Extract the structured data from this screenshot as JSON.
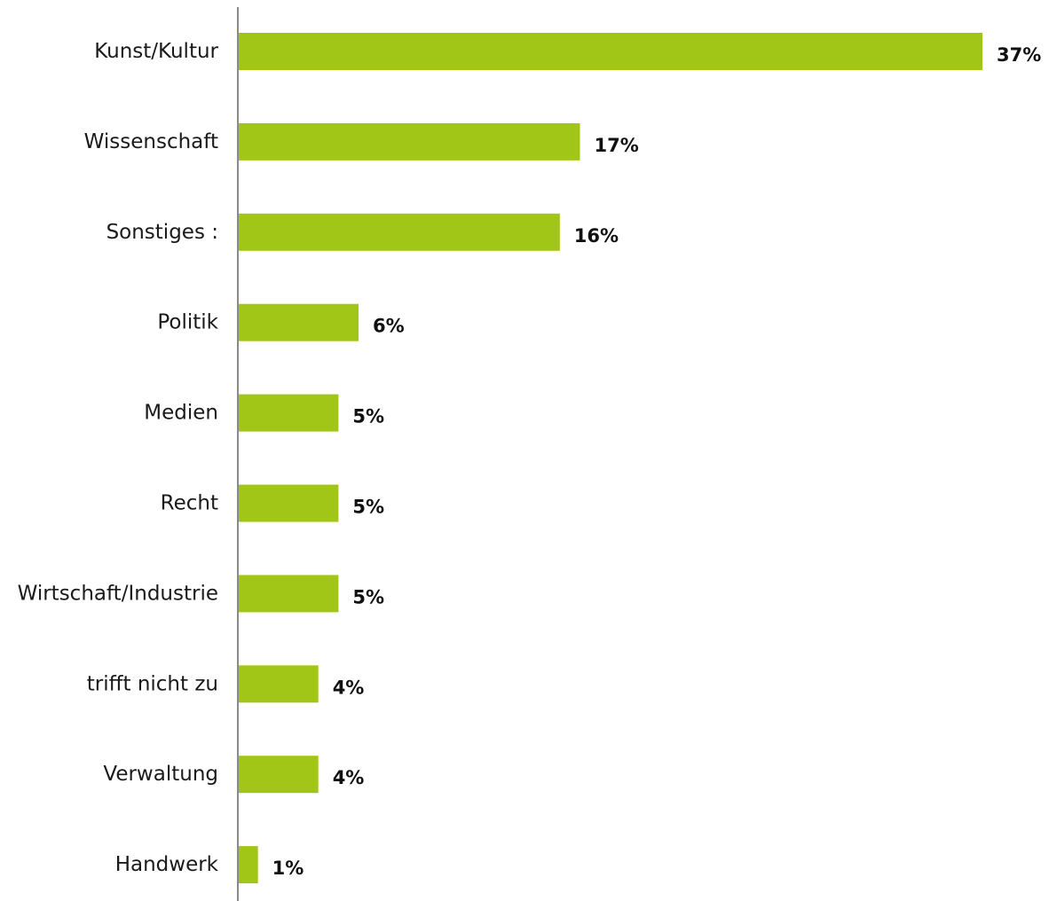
{
  "chart_data": {
    "type": "bar",
    "orientation": "horizontal",
    "title": "",
    "xlabel": "",
    "ylabel": "",
    "value_suffix": "%",
    "xlim": [
      0,
      37
    ],
    "grid": false,
    "legend": "none",
    "bar_color": "#a2c617",
    "axis_color": "#8a8a8a",
    "categories": [
      "Kunst/Kultur",
      "Wissenschaft",
      "Sonstiges :",
      "Politik",
      "Medien",
      "Recht",
      "Wirtschaft/Industrie",
      "trifft nicht zu",
      "Verwaltung",
      "Handwerk"
    ],
    "values": [
      37,
      17,
      16,
      6,
      5,
      5,
      5,
      4,
      4,
      1
    ],
    "value_labels": [
      "37%",
      "17%",
      "16%",
      "6%",
      "5%",
      "5%",
      "5%",
      "4%",
      "4%",
      "1%"
    ]
  }
}
